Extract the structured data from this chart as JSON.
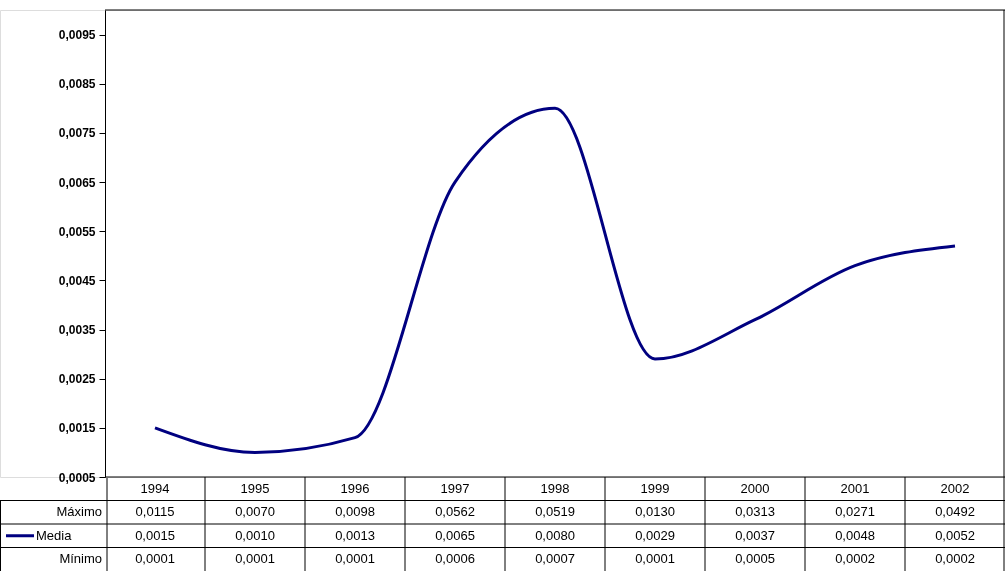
{
  "chart_data": [
    {
      "type": "line",
      "categories": [
        "1994",
        "1995",
        "1996",
        "1997",
        "1998",
        "1999",
        "2000",
        "2001",
        "2002"
      ],
      "series": [
        {
          "name": "Media",
          "color": "#000080",
          "values": [
            0.0015,
            0.001,
            0.0013,
            0.0065,
            0.008,
            0.0029,
            0.0037,
            0.0048,
            0.0052
          ],
          "value_labels": [
            "0,0015",
            "0,0010",
            "0,0013",
            "0,0065",
            "0,0080",
            "0,0029",
            "0,0037",
            "0,0048",
            "0,0052"
          ]
        }
      ],
      "ylim": [
        0.0005,
        0.01
      ],
      "yticks": [
        {
          "value": 0.0005,
          "label": "0,0005"
        },
        {
          "value": 0.0015,
          "label": "0,0015"
        },
        {
          "value": 0.0025,
          "label": "0,0025"
        },
        {
          "value": 0.0035,
          "label": "0,0035"
        },
        {
          "value": 0.0045,
          "label": "0,0045"
        },
        {
          "value": 0.0055,
          "label": "0,0055"
        },
        {
          "value": 0.0065,
          "label": "0,0065"
        },
        {
          "value": 0.0075,
          "label": "0,0075"
        },
        {
          "value": 0.0085,
          "label": "0,0085"
        },
        {
          "value": 0.0095,
          "label": "0,0095"
        }
      ],
      "grid": false
    },
    {
      "type": "other",
      "annotations": [
        "Máximo",
        "0,0115",
        "0,0070",
        "0,0098",
        "0,0562",
        "0,0519",
        "0,0130",
        "0,0313",
        "0,0271",
        "0,0492",
        "Mínimo",
        "0,0001",
        "0,0001",
        "0,0001",
        "0,0006",
        "0,0007",
        "0,0001",
        "0,0005",
        "0,0002",
        "0,0002"
      ]
    }
  ]
}
